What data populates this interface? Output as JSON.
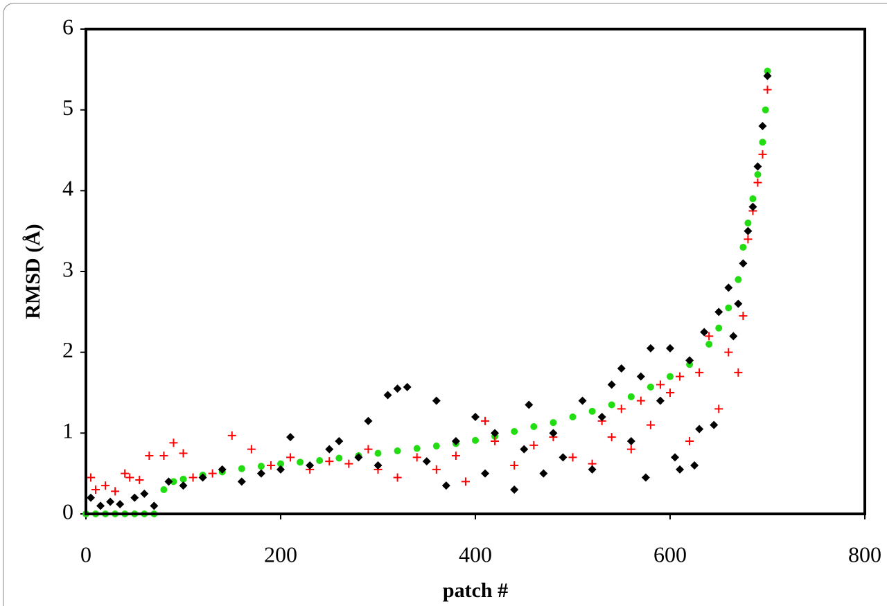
{
  "chart_data": {
    "type": "scatter",
    "x_label": "patch #",
    "y_label": "RMSD (Å)",
    "xlim": [
      0,
      800
    ],
    "xticks": [
      0,
      200,
      400,
      600,
      800
    ],
    "ylim": [
      0,
      6
    ],
    "yticks": [
      0,
      1,
      2,
      3,
      4,
      5,
      6
    ],
    "series": [
      {
        "color": "#22dd11",
        "marker": "circle",
        "x": [
          0,
          10,
          20,
          30,
          40,
          50,
          60,
          70,
          80,
          90,
          100,
          120,
          140,
          160,
          180,
          200,
          220,
          240,
          260,
          280,
          300,
          320,
          340,
          360,
          380,
          400,
          420,
          440,
          460,
          480,
          500,
          520,
          540,
          560,
          580,
          600,
          620,
          640,
          650,
          660,
          670,
          675,
          680,
          685,
          690,
          695,
          698,
          700
        ],
        "values": [
          0,
          0,
          0,
          0,
          0,
          0,
          0,
          0,
          0.3,
          0.4,
          0.43,
          0.48,
          0.52,
          0.56,
          0.59,
          0.62,
          0.64,
          0.66,
          0.69,
          0.72,
          0.75,
          0.78,
          0.81,
          0.84,
          0.87,
          0.91,
          0.96,
          1.02,
          1.08,
          1.13,
          1.2,
          1.27,
          1.35,
          1.45,
          1.57,
          1.7,
          1.85,
          2.1,
          2.3,
          2.55,
          2.9,
          3.3,
          3.6,
          3.9,
          4.2,
          4.6,
          5.0,
          5.48
        ]
      },
      {
        "color": "#ff0000",
        "marker": "plus",
        "x": [
          5,
          10,
          20,
          30,
          40,
          45,
          55,
          65,
          80,
          90,
          100,
          110,
          130,
          150,
          170,
          190,
          210,
          230,
          250,
          270,
          290,
          300,
          320,
          340,
          360,
          380,
          390,
          410,
          420,
          440,
          460,
          480,
          500,
          520,
          530,
          540,
          550,
          560,
          570,
          580,
          590,
          600,
          610,
          620,
          630,
          640,
          650,
          660,
          670,
          675,
          680,
          685,
          690,
          695,
          700
        ],
        "values": [
          0.45,
          0.3,
          0.35,
          0.28,
          0.5,
          0.45,
          0.42,
          0.72,
          0.72,
          0.88,
          0.75,
          0.45,
          0.5,
          0.97,
          0.8,
          0.6,
          0.7,
          0.55,
          0.65,
          0.62,
          0.8,
          0.55,
          0.45,
          0.7,
          0.55,
          0.72,
          0.4,
          1.15,
          0.9,
          0.6,
          0.85,
          0.95,
          0.7,
          0.62,
          1.15,
          0.95,
          1.3,
          0.8,
          1.4,
          1.1,
          1.6,
          1.5,
          1.7,
          0.9,
          1.75,
          2.2,
          1.3,
          2.0,
          1.75,
          2.45,
          3.4,
          3.75,
          4.1,
          4.45,
          5.25
        ]
      },
      {
        "color": "#000000",
        "marker": "diamond",
        "x": [
          5,
          15,
          25,
          35,
          50,
          60,
          70,
          85,
          100,
          120,
          140,
          160,
          180,
          200,
          210,
          230,
          250,
          260,
          280,
          290,
          300,
          310,
          320,
          330,
          350,
          360,
          370,
          380,
          400,
          410,
          420,
          440,
          450,
          455,
          470,
          480,
          490,
          510,
          520,
          530,
          540,
          550,
          560,
          570,
          575,
          580,
          590,
          600,
          605,
          610,
          620,
          625,
          630,
          635,
          645,
          650,
          660,
          665,
          670,
          675,
          680,
          685,
          690,
          695,
          700
        ],
        "values": [
          0.2,
          0.1,
          0.15,
          0.12,
          0.2,
          0.25,
          0.1,
          0.4,
          0.35,
          0.45,
          0.55,
          0.4,
          0.5,
          0.55,
          0.95,
          0.6,
          0.8,
          0.9,
          0.7,
          1.15,
          0.6,
          1.47,
          1.55,
          1.57,
          0.65,
          1.4,
          0.35,
          0.9,
          1.2,
          0.5,
          1.0,
          0.3,
          0.8,
          1.35,
          0.5,
          1.0,
          0.7,
          1.4,
          0.55,
          1.2,
          1.6,
          1.8,
          0.9,
          1.7,
          0.45,
          2.05,
          1.4,
          2.05,
          0.7,
          0.55,
          1.9,
          0.6,
          1.05,
          2.25,
          1.1,
          2.5,
          2.8,
          2.2,
          2.6,
          3.1,
          3.5,
          3.8,
          4.3,
          4.8,
          5.42
        ]
      }
    ]
  }
}
